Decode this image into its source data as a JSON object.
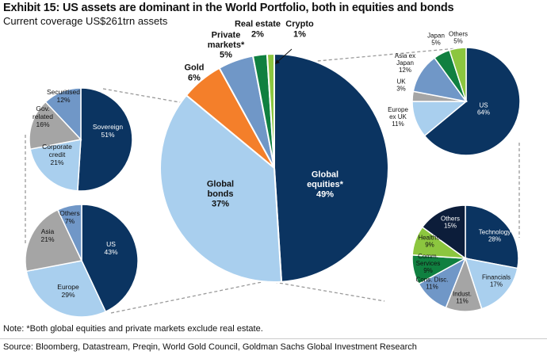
{
  "title": "Exhibit 15: US assets are dominant in the World Portfolio, both in equities and bonds",
  "subtitle": "Current coverage US$261trn assets",
  "note": "Note: *Both global equities and private markets exclude real estate.",
  "source": "Source: Bloomberg, Datastream, Preqin, World Gold Council, Goldman Sachs Global Investment Research",
  "colors": {
    "navy": "#0b3461",
    "light_blue": "#a9cfee",
    "gray": "#a5a5a5",
    "mid_blue": "#7097c7",
    "green": "#108040",
    "light_green": "#8cc63f",
    "orange": "#f47f2a",
    "dark_navy": "#0c1d3a"
  },
  "chart_data": [
    {
      "type": "pie",
      "id": "world",
      "slices": [
        {
          "label": "Global equities*",
          "value": 49,
          "color": "#0b3461"
        },
        {
          "label": "Global bonds",
          "value": 37,
          "color": "#a9cfee"
        },
        {
          "label": "Gold",
          "value": 6,
          "color": "#f47f2a"
        },
        {
          "label": "Private markets*",
          "value": 5,
          "color": "#7097c7"
        },
        {
          "label": "Real estate",
          "value": 2,
          "color": "#108040"
        },
        {
          "label": "Crypto",
          "value": 1,
          "color": "#8cc63f"
        }
      ]
    },
    {
      "type": "pie",
      "id": "bonds-type",
      "slices": [
        {
          "label": "Sovereign",
          "value": 51,
          "color": "#0b3461"
        },
        {
          "label": "Corporate credit",
          "value": 21,
          "color": "#a9cfee"
        },
        {
          "label": "Gov. related",
          "value": 16,
          "color": "#a5a5a5"
        },
        {
          "label": "Securitised",
          "value": 12,
          "color": "#7097c7"
        }
      ]
    },
    {
      "type": "pie",
      "id": "bonds-region",
      "slices": [
        {
          "label": "US",
          "value": 43,
          "color": "#0b3461"
        },
        {
          "label": "Europe",
          "value": 29,
          "color": "#a9cfee"
        },
        {
          "label": "Asia",
          "value": 21,
          "color": "#a5a5a5"
        },
        {
          "label": "Others",
          "value": 7,
          "color": "#7097c7"
        }
      ]
    },
    {
      "type": "pie",
      "id": "equities-region",
      "slices": [
        {
          "label": "US",
          "value": 64,
          "color": "#0b3461"
        },
        {
          "label": "Europe ex UK",
          "value": 11,
          "color": "#a9cfee"
        },
        {
          "label": "UK",
          "value": 3,
          "color": "#a5a5a5"
        },
        {
          "label": "Asia ex Japan",
          "value": 12,
          "color": "#7097c7"
        },
        {
          "label": "Japan",
          "value": 5,
          "color": "#108040"
        },
        {
          "label": "Others",
          "value": 5,
          "color": "#8cc63f"
        }
      ]
    },
    {
      "type": "pie",
      "id": "equities-sector",
      "slices": [
        {
          "label": "Technology",
          "value": 28,
          "color": "#0b3461"
        },
        {
          "label": "Financials",
          "value": 17,
          "color": "#a9cfee"
        },
        {
          "label": "Indust.",
          "value": 11,
          "color": "#a5a5a5"
        },
        {
          "label": "Cons. Disc.",
          "value": 11,
          "color": "#7097c7"
        },
        {
          "label": "Comm. Services",
          "value": 9,
          "color": "#108040"
        },
        {
          "label": "Healthc.",
          "value": 9,
          "color": "#8cc63f"
        },
        {
          "label": "Others",
          "value": 15,
          "color": "#0c1d3a"
        }
      ]
    }
  ]
}
